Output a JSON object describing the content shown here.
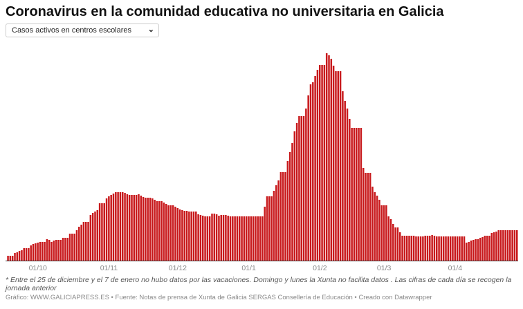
{
  "title": "Coronavirus en la comunidad educativa no universitaria en Galicia",
  "dropdown": {
    "selected": "Casos activos en centros escolares",
    "icon": "chevron-down-icon"
  },
  "note": "* Entre el 25 de diciembre y el 7 de enero no hubo datos por las vacaciones. Domingo y lunes la Xunta no facilita datos . Las cifras de cada día se recogen la jornada anterior",
  "credit": "Gráfico: WWW.GALICIAPRESS.ES • Fuente: Notas de prensa de Xunta de Galicia SERGAS Consellería de Educación • Creado con Datawrapper",
  "colors": {
    "bar": "#c8191c",
    "axis": "#333333",
    "tick_text": "#888888"
  },
  "chart_data": {
    "type": "bar",
    "title": "",
    "xlabel": "",
    "ylabel": "",
    "ylim": [
      0,
      300
    ],
    "grid": false,
    "y_axis_shown": false,
    "ticks": [
      {
        "date": "01/10",
        "label": "01/10"
      },
      {
        "date": "01/11",
        "label": "01/11"
      },
      {
        "date": "01/12",
        "label": "01/12"
      },
      {
        "date": "01/01",
        "label": "01/1"
      },
      {
        "date": "01/02",
        "label": "01/2"
      },
      {
        "date": "01/03",
        "label": "01/3"
      },
      {
        "date": "01/04",
        "label": "01/4"
      }
    ],
    "x": [
      "18/09",
      "19/09",
      "20/09",
      "21/09",
      "22/09",
      "23/09",
      "24/09",
      "25/09",
      "26/09",
      "27/09",
      "28/09",
      "29/09",
      "30/09",
      "01/10",
      "02/10",
      "03/10",
      "04/10",
      "05/10",
      "06/10",
      "07/10",
      "08/10",
      "09/10",
      "10/10",
      "11/10",
      "12/10",
      "13/10",
      "14/10",
      "15/10",
      "16/10",
      "17/10",
      "18/10",
      "19/10",
      "20/10",
      "21/10",
      "22/10",
      "23/10",
      "24/10",
      "25/10",
      "26/10",
      "27/10",
      "28/10",
      "29/10",
      "30/10",
      "31/10",
      "01/11",
      "02/11",
      "03/11",
      "04/11",
      "05/11",
      "06/11",
      "07/11",
      "08/11",
      "09/11",
      "10/11",
      "11/11",
      "12/11",
      "13/11",
      "14/11",
      "15/11",
      "16/11",
      "17/11",
      "18/11",
      "19/11",
      "20/11",
      "21/11",
      "22/11",
      "23/11",
      "24/11",
      "25/11",
      "26/11",
      "27/11",
      "28/11",
      "29/11",
      "30/11",
      "01/12",
      "02/12",
      "03/12",
      "04/12",
      "05/12",
      "06/12",
      "07/12",
      "08/12",
      "09/12",
      "10/12",
      "11/12",
      "12/12",
      "13/12",
      "14/12",
      "15/12",
      "16/12",
      "17/12",
      "18/12",
      "19/12",
      "20/12",
      "21/12",
      "22/12",
      "23/12",
      "24/12",
      "25/12",
      "26/12",
      "27/12",
      "28/12",
      "29/12",
      "30/12",
      "31/12",
      "01/01",
      "02/01",
      "03/01",
      "04/01",
      "05/01",
      "06/01",
      "07/01",
      "08/01",
      "09/01",
      "10/01",
      "11/01",
      "12/01",
      "13/01",
      "14/01",
      "15/01",
      "16/01",
      "17/01",
      "18/01",
      "19/01",
      "20/01",
      "21/01",
      "22/01",
      "23/01",
      "24/01",
      "25/01",
      "26/01",
      "27/01",
      "28/01",
      "29/01",
      "30/01",
      "31/01",
      "01/02",
      "02/02",
      "03/02",
      "04/02",
      "05/02",
      "06/02",
      "07/02",
      "08/02",
      "09/02",
      "10/02",
      "11/02",
      "12/02",
      "13/02",
      "14/02",
      "15/02",
      "16/02",
      "17/02",
      "18/02",
      "19/02",
      "20/02",
      "21/02",
      "22/02",
      "23/02",
      "24/02",
      "25/02",
      "26/02",
      "27/02",
      "28/02",
      "01/03",
      "02/03",
      "03/03",
      "04/03",
      "05/03",
      "06/03",
      "07/03",
      "08/03",
      "09/03",
      "10/03",
      "11/03",
      "12/03",
      "13/03",
      "14/03",
      "15/03",
      "16/03",
      "17/03",
      "18/03",
      "19/03",
      "20/03",
      "21/03",
      "22/03",
      "23/03",
      "24/03",
      "25/03",
      "26/03",
      "27/03",
      "28/03",
      "29/03",
      "30/03",
      "31/03",
      "01/04",
      "02/04",
      "03/04",
      "04/04",
      "05/04",
      "06/04",
      "07/04",
      "08/04",
      "09/04",
      "10/04",
      "11/04",
      "12/04",
      "13/04",
      "14/04",
      "15/04",
      "16/04",
      "17/04",
      "18/04",
      "19/04",
      "20/04",
      "21/04",
      "22/04",
      "23/04",
      "24/04",
      "25/04",
      "26/04",
      "27/04",
      "28/04"
    ],
    "values": [
      7,
      7,
      7,
      11,
      12,
      14,
      15,
      18,
      18,
      18,
      22,
      24,
      25,
      26,
      27,
      27,
      27,
      31,
      30,
      27,
      29,
      30,
      30,
      30,
      33,
      33,
      33,
      39,
      39,
      39,
      44,
      49,
      52,
      56,
      56,
      56,
      66,
      69,
      71,
      73,
      83,
      83,
      83,
      90,
      93,
      95,
      97,
      99,
      99,
      99,
      99,
      98,
      96,
      95,
      95,
      95,
      95,
      96,
      94,
      92,
      91,
      91,
      91,
      90,
      88,
      86,
      86,
      86,
      84,
      82,
      80,
      80,
      80,
      78,
      76,
      74,
      73,
      72,
      72,
      71,
      71,
      71,
      71,
      67,
      66,
      65,
      64,
      64,
      64,
      68,
      68,
      67,
      65,
      66,
      66,
      66,
      65,
      64,
      64,
      64,
      64,
      64,
      64,
      64,
      64,
      64,
      64,
      64,
      64,
      64,
      64,
      64,
      78,
      93,
      93,
      93,
      101,
      109,
      116,
      128,
      128,
      128,
      144,
      157,
      170,
      187,
      199,
      209,
      209,
      209,
      220,
      239,
      255,
      258,
      267,
      276,
      283,
      283,
      283,
      300,
      297,
      292,
      282,
      274,
      274,
      274,
      245,
      231,
      220,
      205,
      192,
      192,
      192,
      192,
      192,
      134,
      127,
      127,
      127,
      107,
      99,
      94,
      88,
      80,
      80,
      80,
      64,
      60,
      53,
      48,
      48,
      41,
      36,
      36,
      36,
      36,
      36,
      36,
      35,
      35,
      35,
      35,
      36,
      36,
      36,
      37,
      36,
      35,
      35,
      35,
      35,
      35,
      35,
      35,
      35,
      35,
      35,
      35,
      35,
      35,
      26,
      27,
      29,
      30,
      31,
      31,
      33,
      34,
      36,
      36,
      36,
      40,
      41,
      42,
      44,
      44,
      44,
      44,
      44,
      44,
      44,
      44,
      44
    ]
  }
}
